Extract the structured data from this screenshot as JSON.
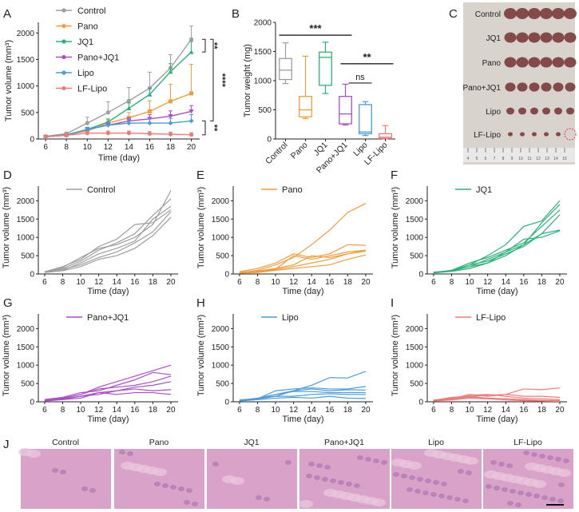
{
  "colors": {
    "Control": "#9e9e9e",
    "Pano": "#f39c3c",
    "JQ1": "#2bb27a",
    "Pano+JQ1": "#a94fc9",
    "Lipo": "#4a9be0",
    "LF-Lipo": "#ef7b78",
    "axis": "#222222",
    "tissue": "#d9a3c9",
    "tumor": "#7a3b3b",
    "ruler": "#e8e8e8",
    "background_photo": "#d8d3cd",
    "circle": "#e53935"
  },
  "chart_data": [
    {
      "panel": "A",
      "type": "line",
      "ylabel": "Tumor volume (mm³)",
      "xlabel": "Time (day)",
      "x": [
        6,
        8,
        10,
        12,
        14,
        16,
        18,
        20
      ],
      "xticks": [
        "6",
        "8",
        "10",
        "12",
        "14",
        "16",
        "18",
        "20"
      ],
      "ylim": [
        0,
        2200
      ],
      "yticks": [
        0,
        500,
        1000,
        1500,
        2000
      ],
      "series": [
        {
          "name": "Control",
          "values": [
            50,
            100,
            300,
            500,
            720,
            960,
            1340,
            1880
          ],
          "err": [
            10,
            30,
            110,
            200,
            250,
            300,
            250,
            250
          ]
        },
        {
          "name": "Pano",
          "values": [
            40,
            80,
            150,
            300,
            400,
            520,
            710,
            860
          ],
          "err": [
            10,
            20,
            40,
            60,
            100,
            200,
            320,
            550
          ]
        },
        {
          "name": "JQ1",
          "values": [
            40,
            80,
            180,
            320,
            580,
            840,
            1270,
            1640
          ],
          "err": [
            10,
            20,
            40,
            60,
            100,
            120,
            150,
            200
          ]
        },
        {
          "name": "Pano+JQ1",
          "values": [
            40,
            70,
            180,
            260,
            340,
            380,
            430,
            520
          ],
          "err": [
            10,
            20,
            30,
            40,
            60,
            80,
            100,
            110
          ]
        },
        {
          "name": "Lipo",
          "values": [
            40,
            70,
            180,
            260,
            300,
            300,
            300,
            340
          ],
          "err": [
            10,
            20,
            40,
            60,
            80,
            80,
            90,
            120
          ]
        },
        {
          "name": "LF-Lipo",
          "values": [
            40,
            70,
            110,
            110,
            110,
            100,
            90,
            80
          ],
          "err": [
            10,
            20,
            30,
            40,
            40,
            40,
            40,
            40
          ]
        }
      ],
      "significance": [
        "**",
        "****",
        "**"
      ]
    },
    {
      "panel": "B",
      "type": "box",
      "ylabel": "Tumor weight (mg)",
      "categories": [
        "Control",
        "Pano",
        "JQ1",
        "Pano+JQ1",
        "Lipo",
        "LF-Lipo"
      ],
      "ylim": [
        0,
        2000
      ],
      "yticks": [
        0,
        500,
        1000,
        1500,
        2000
      ],
      "boxes": [
        {
          "min": 950,
          "q1": 1020,
          "median": 1180,
          "q3": 1380,
          "max": 1650
        },
        {
          "min": 350,
          "q1": 380,
          "median": 500,
          "q3": 730,
          "max": 1420
        },
        {
          "min": 780,
          "q1": 920,
          "median": 1400,
          "q3": 1490,
          "max": 1660
        },
        {
          "min": 240,
          "q1": 260,
          "median": 430,
          "q3": 730,
          "max": 940
        },
        {
          "min": 60,
          "q1": 90,
          "median": 120,
          "q3": 590,
          "max": 640
        },
        {
          "min": 0,
          "q1": 10,
          "median": 30,
          "q3": 90,
          "max": 230
        }
      ],
      "significance": [
        "***",
        "**",
        "ns"
      ]
    },
    {
      "panel": "D-I",
      "type": "line",
      "ylabel": "Tumor volume (mm³)",
      "xlabel": "Time (day)",
      "x": [
        6,
        8,
        10,
        12,
        14,
        16,
        18,
        20
      ],
      "xticks": [
        "6",
        "8",
        "10",
        "12",
        "14",
        "16",
        "18",
        "20"
      ],
      "ylim": [
        0,
        2400
      ],
      "yticks": [
        0,
        500,
        1000,
        1500,
        2000
      ],
      "groups": [
        {
          "name": "Control",
          "lines": [
            [
              40,
              180,
              450,
              700,
              800,
              1000,
              1350,
              2280
            ],
            [
              50,
              150,
              350,
              650,
              850,
              1100,
              1600,
              2050
            ],
            [
              40,
              100,
              300,
              550,
              700,
              900,
              1500,
              1850
            ],
            [
              60,
              200,
              400,
              750,
              950,
              1350,
              1400,
              1750
            ],
            [
              50,
              130,
              250,
              450,
              600,
              850,
              1150,
              1700
            ],
            [
              40,
              90,
              200,
              400,
              500,
              700,
              1050,
              1550
            ]
          ]
        },
        {
          "name": "Pano",
          "lines": [
            [
              40,
              100,
              250,
              450,
              800,
              1200,
              1680,
              1930
            ],
            [
              60,
              150,
              300,
              550,
              450,
              550,
              800,
              780
            ],
            [
              40,
              80,
              150,
              250,
              500,
              450,
              550,
              650
            ],
            [
              30,
              60,
              120,
              200,
              300,
              400,
              550,
              620
            ],
            [
              20,
              40,
              100,
              150,
              200,
              250,
              400,
              520
            ],
            [
              30,
              70,
              130,
              500,
              400,
              500,
              600,
              650
            ]
          ]
        },
        {
          "name": "JQ1",
          "lines": [
            [
              40,
              90,
              250,
              500,
              800,
              1300,
              1450,
              2000
            ],
            [
              30,
              80,
              200,
              400,
              600,
              800,
              1400,
              1900
            ],
            [
              40,
              100,
              300,
              450,
              650,
              850,
              1300,
              1750
            ],
            [
              50,
              90,
              250,
              350,
              550,
              750,
              1100,
              1620
            ],
            [
              30,
              70,
              150,
              300,
              500,
              800,
              1100,
              1200
            ],
            [
              40,
              100,
              200,
              300,
              600,
              950,
              1000,
              1180
            ]
          ]
        },
        {
          "name": "Pano+JQ1",
          "lines": [
            [
              40,
              100,
              200,
              400,
              550,
              700,
              850,
              1000
            ],
            [
              60,
              120,
              250,
              300,
              450,
              600,
              800,
              740
            ],
            [
              50,
              90,
              200,
              350,
              400,
              450,
              550,
              700
            ],
            [
              40,
              80,
              150,
              250,
              300,
              400,
              450,
              550
            ],
            [
              30,
              70,
              150,
              200,
              300,
              350,
              300,
              330
            ],
            [
              20,
              60,
              100,
              250,
              200,
              250,
              250,
              200
            ]
          ]
        },
        {
          "name": "Lipo",
          "lines": [
            [
              40,
              100,
              200,
              300,
              450,
              660,
              650,
              830
            ],
            [
              30,
              80,
              300,
              350,
              380,
              350,
              350,
              420
            ],
            [
              50,
              90,
              150,
              300,
              350,
              300,
              330,
              320
            ],
            [
              40,
              70,
              200,
              280,
              280,
              250,
              250,
              250
            ],
            [
              30,
              80,
              150,
              150,
              200,
              220,
              200,
              200
            ],
            [
              20,
              60,
              100,
              120,
              100,
              150,
              100,
              90
            ]
          ]
        },
        {
          "name": "LF-Lipo",
          "lines": [
            [
              40,
              120,
              150,
              180,
              200,
              350,
              330,
              380
            ],
            [
              30,
              80,
              200,
              150,
              200,
              150,
              150,
              120
            ],
            [
              50,
              100,
              180,
              200,
              150,
              100,
              80,
              60
            ],
            [
              40,
              80,
              150,
              100,
              80,
              60,
              40,
              30
            ],
            [
              30,
              60,
              120,
              100,
              80,
              50,
              30,
              20
            ],
            [
              20,
              50,
              100,
              80,
              50,
              30,
              20,
              10
            ]
          ]
        }
      ]
    }
  ],
  "panels": {
    "letters": [
      "A",
      "B",
      "C",
      "D",
      "E",
      "F",
      "G",
      "H",
      "I",
      "J"
    ],
    "photo_rows": [
      "Control",
      "JQ1",
      "Pano",
      "Pano+JQ1",
      "Lipo",
      "LF-Lipo"
    ],
    "photo_tumor_counts": [
      6,
      6,
      6,
      6,
      6,
      5
    ],
    "ruler_numbers": [
      "4",
      "5",
      "6",
      "7",
      "8",
      "9",
      "10",
      "11",
      "12",
      "13",
      "14",
      "15"
    ],
    "histology_labels": [
      "Control",
      "Pano",
      "JQ1",
      "Pano+JQ1",
      "Lipo",
      "LF-Lipo"
    ]
  }
}
